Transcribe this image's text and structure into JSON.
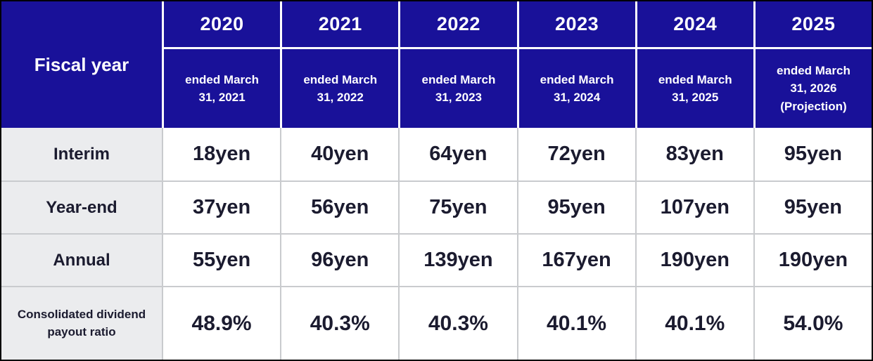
{
  "chart_data": {
    "type": "table",
    "corner_label": "Fiscal year",
    "column_years": [
      "2020",
      "2021",
      "2022",
      "2023",
      "2024",
      "2025"
    ],
    "column_subheaders": [
      "ended March 31, 2021",
      "ended March 31, 2022",
      "ended March 31, 2023",
      "ended March 31, 2024",
      "ended March 31, 2025",
      "ended March 31, 2026"
    ],
    "column_notes": [
      "",
      "",
      "",
      "",
      "",
      "(Projection)"
    ],
    "rows": [
      {
        "label": "Interim",
        "values": [
          "18yen",
          "40yen",
          "64yen",
          "72yen",
          "83yen",
          "95yen"
        ]
      },
      {
        "label": "Year-end",
        "values": [
          "37yen",
          "56yen",
          "75yen",
          "95yen",
          "107yen",
          "95yen"
        ]
      },
      {
        "label": "Annual",
        "values": [
          "55yen",
          "96yen",
          "139yen",
          "167yen",
          "190yen",
          "190yen"
        ]
      },
      {
        "label": "Consolidated dividend payout ratio",
        "values": [
          "48.9%",
          "40.3%",
          "40.3%",
          "40.1%",
          "40.1%",
          "54.0%"
        ]
      }
    ]
  },
  "colors": {
    "header_background": "#191199",
    "header_text": "#ffffff",
    "label_column_background": "#ebecee",
    "body_text": "#1b1b2f",
    "grid_line": "#c9cbce",
    "outer_border": "#000000"
  }
}
